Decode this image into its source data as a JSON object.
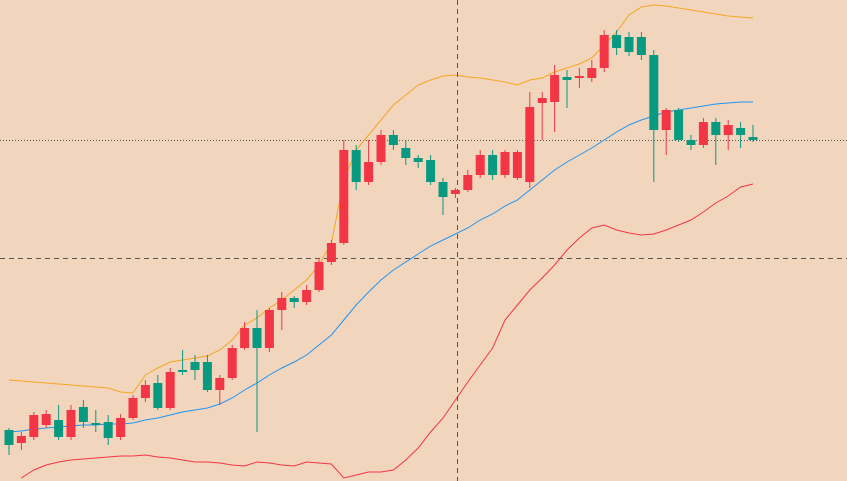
{
  "chart_data": {
    "type": "candlestick",
    "open": [
      51,
      38,
      44,
      56,
      61,
      44,
      74,
      58,
      59,
      44,
      63,
      83,
      98,
      73,
      111,
      119,
      119,
      91,
      103,
      133,
      153,
      133,
      171,
      183,
      179,
      191,
      219,
      238,
      331,
      299,
      319,
      346,
      333,
      323,
      321,
      299,
      287,
      291,
      306,
      326,
      306,
      303,
      299,
      378,
      379,
      404,
      403,
      403,
      413,
      446,
      444,
      444,
      426,
      351,
      371,
      341,
      336,
      359,
      346,
      353,
      344
    ],
    "close": [
      36,
      45,
      66,
      67,
      44,
      71,
      59,
      56,
      43,
      63,
      83,
      96,
      73,
      109,
      109,
      111,
      91,
      103,
      133,
      153,
      133,
      171,
      183,
      179,
      191,
      219,
      238,
      331,
      299,
      319,
      346,
      336,
      323,
      319,
      299,
      284,
      291,
      306,
      326,
      306,
      329,
      329,
      374,
      383,
      406,
      401,
      405,
      413,
      446,
      433,
      429,
      426,
      351,
      371,
      341,
      336,
      359,
      346,
      356,
      346,
      341
    ],
    "high": [
      53,
      49,
      69,
      71,
      76,
      76,
      81,
      71,
      66,
      67,
      86,
      101,
      106,
      113,
      131,
      126,
      126,
      106,
      136,
      159,
      171,
      173,
      189,
      185,
      196,
      223,
      241,
      341,
      336,
      341,
      351,
      351,
      341,
      326,
      326,
      303,
      293,
      311,
      331,
      331,
      331,
      331,
      389,
      389,
      416,
      411,
      413,
      421,
      451,
      451,
      449,
      449,
      431,
      373,
      373,
      346,
      363,
      363,
      361,
      359,
      356
    ],
    "low": [
      26,
      31,
      41,
      53,
      41,
      41,
      53,
      49,
      36,
      41,
      61,
      79,
      71,
      71,
      106,
      101,
      89,
      76,
      101,
      131,
      49,
      129,
      151,
      173,
      176,
      189,
      216,
      236,
      291,
      296,
      316,
      331,
      316,
      313,
      296,
      266,
      283,
      289,
      303,
      301,
      303,
      301,
      293,
      341,
      349,
      373,
      393,
      399,
      409,
      426,
      425,
      421,
      299,
      326,
      339,
      331,
      333,
      316,
      331,
      333,
      339
    ],
    "up_color": "#f23645",
    "down_color": "#089981",
    "bands": [
      {
        "color": "#f5a623",
        "values": [
          101,
          100,
          99,
          98,
          97,
          96,
          95,
          94,
          93,
          89,
          88,
          106,
          113,
          119,
          121,
          123,
          125,
          131,
          141,
          156,
          163,
          173,
          181,
          191,
          201,
          216,
          238,
          301,
          331,
          346,
          361,
          376,
          386,
          396,
          401,
          405,
          406,
          404,
          403,
          401,
          399,
          396,
          401,
          403,
          409,
          413,
          417,
          423,
          436,
          449,
          466,
          474,
          476,
          475,
          473,
          471,
          469,
          467,
          465,
          464,
          463
        ]
      },
      {
        "color": "#2196f3",
        "values": [
          49,
          50,
          52,
          53,
          54,
          55,
          56,
          56,
          57,
          57,
          58,
          61,
          63,
          66,
          69,
          71,
          73,
          77,
          83,
          91,
          98,
          106,
          113,
          119,
          126,
          136,
          146,
          161,
          176,
          189,
          201,
          211,
          219,
          227,
          235,
          241,
          247,
          253,
          261,
          267,
          275,
          281,
          291,
          301,
          311,
          319,
          326,
          333,
          341,
          349,
          356,
          361,
          365,
          369,
          371,
          373,
          375,
          377,
          378,
          379,
          379
        ]
      },
      {
        "color": "#f23645",
        "values": [
          null,
          3,
          11,
          16,
          19,
          21,
          22,
          23,
          24,
          25,
          25,
          26,
          24,
          23,
          21,
          19,
          19,
          18,
          16,
          15,
          19,
          18,
          16,
          15,
          19,
          18,
          17,
          3,
          6,
          9,
          9,
          11,
          21,
          33,
          49,
          63,
          81,
          99,
          116,
          133,
          161,
          176,
          191,
          203,
          216,
          231,
          243,
          253,
          256,
          251,
          248,
          246,
          247,
          251,
          256,
          261,
          269,
          278,
          285,
          294,
          297
        ]
      }
    ],
    "ylim": [
      0,
      481
    ]
  }
}
